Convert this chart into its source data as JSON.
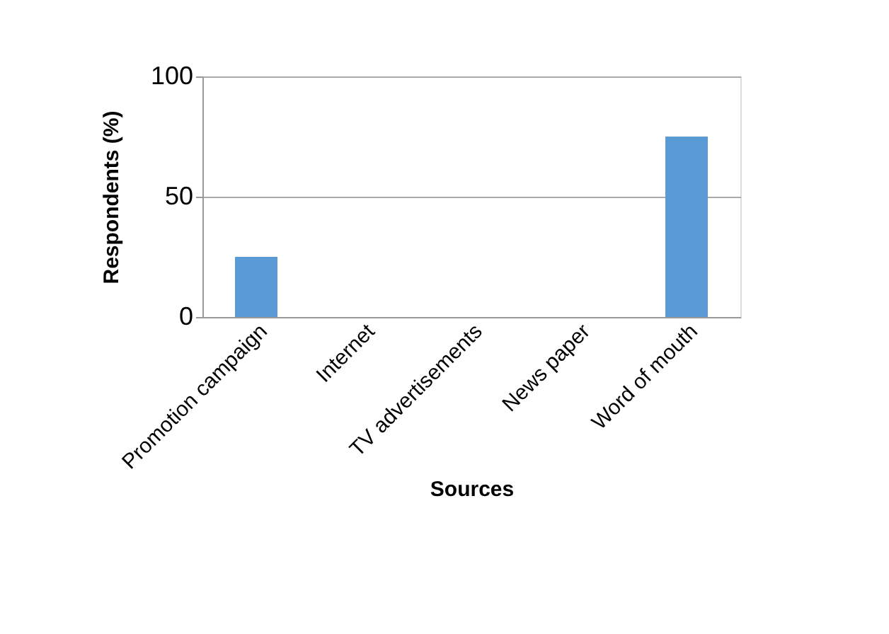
{
  "chart_data": {
    "type": "bar",
    "xlabel": "Sources",
    "ylabel": "Respondents (%)",
    "categories": [
      "Promotion campaign",
      "Internet",
      "TV advertisements",
      "News paper",
      "Word of mouth"
    ],
    "values": [
      25,
      0,
      0,
      0,
      75
    ],
    "color": "#5b9bd5",
    "ylim": [
      0,
      100
    ],
    "yticks": [
      0,
      50,
      100
    ],
    "grid": "y"
  }
}
